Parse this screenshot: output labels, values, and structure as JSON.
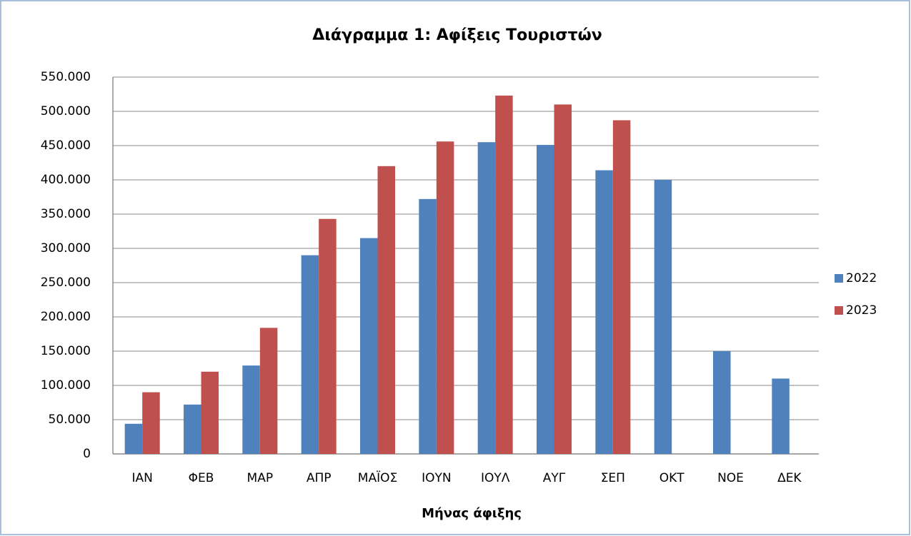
{
  "chart_data": {
    "type": "bar",
    "title": "Διάγραμμα 1: Αφίξεις Τουριστών",
    "x_label": "Μήνας άφιξης",
    "categories": [
      "ΙΑΝ",
      "ΦΕΒ",
      "ΜΑΡ",
      "ΑΠΡ",
      "ΜΑΪΟΣ",
      "ΙΟΥΝ",
      "ΙΟΥΛ",
      "ΑΥΓ",
      "ΣΕΠ",
      "ΟΚΤ",
      "ΝΟΕ",
      "ΔΕΚ"
    ],
    "series": [
      {
        "name": "2022",
        "color": "#4f81bd",
        "values": [
          44000,
          72000,
          129000,
          290000,
          315000,
          372000,
          455000,
          451000,
          414000,
          400000,
          150000,
          110000
        ]
      },
      {
        "name": "2023",
        "color": "#c0504d",
        "values": [
          90000,
          120000,
          184000,
          343000,
          420000,
          456000,
          523000,
          510000,
          487000,
          null,
          null,
          null
        ]
      }
    ],
    "ylim": [
      0,
      550000
    ],
    "yticks": [
      0,
      {
        "value": 50000,
        "label": "50.000"
      },
      {
        "value": 100000,
        "label": "100.000"
      },
      {
        "value": 150000,
        "label": "150.000"
      },
      {
        "value": 200000,
        "label": "200.000"
      },
      {
        "value": 250000,
        "label": "250.000"
      },
      {
        "value": 300000,
        "label": "300.000"
      },
      {
        "value": 350000,
        "label": "350.000"
      },
      {
        "value": 400000,
        "label": "400.000"
      },
      {
        "value": 450000,
        "label": "450.000"
      },
      {
        "value": 500000,
        "label": "500.000"
      },
      {
        "value": 550000,
        "label": "550.000"
      }
    ],
    "grid": true,
    "legend": "right"
  }
}
